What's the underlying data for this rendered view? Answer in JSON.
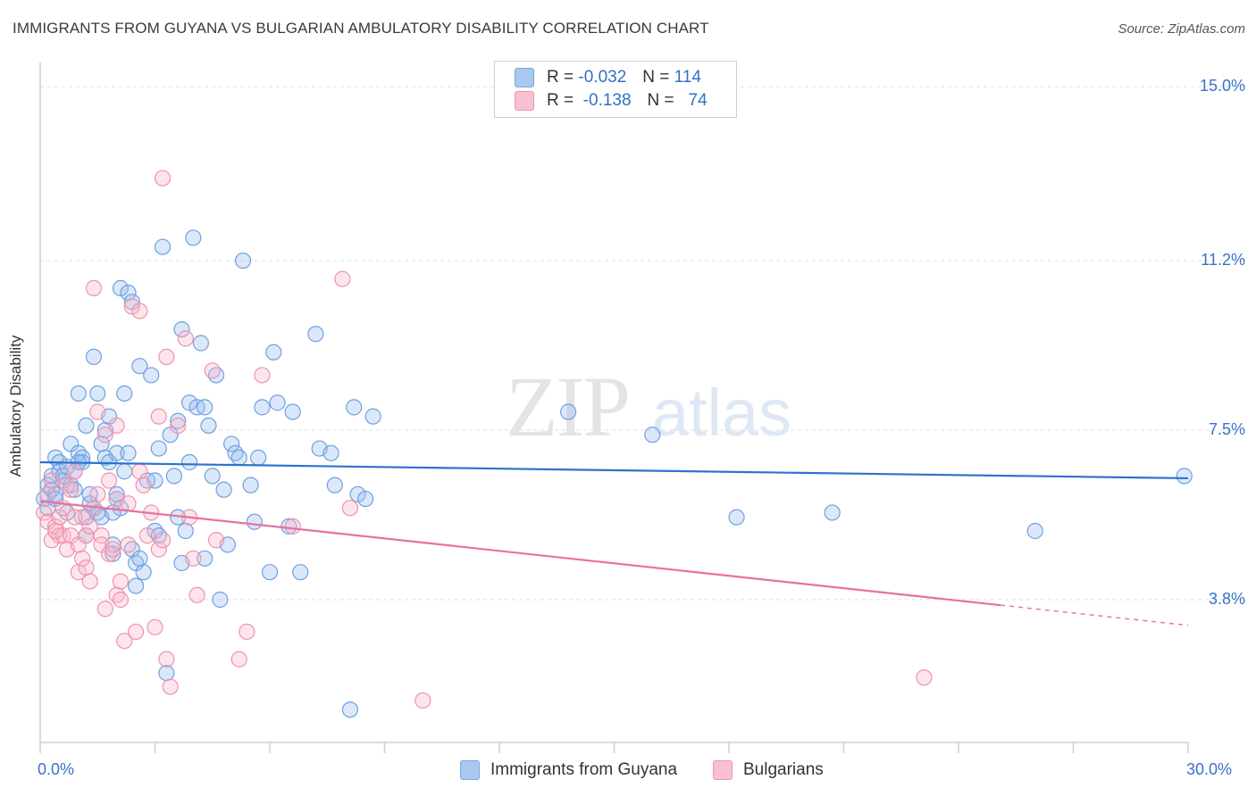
{
  "title": "IMMIGRANTS FROM GUYANA VS BULGARIAN AMBULATORY DISABILITY CORRELATION CHART",
  "source": "Source: ZipAtlas.com",
  "watermark": {
    "zip": "ZIP",
    "atlas": "atlas"
  },
  "legend": {
    "rows": [
      {
        "r_label": "R =",
        "r_value": "-0.032",
        "n_label": "N =",
        "n_value": "114",
        "color": "#a8c8f0",
        "border": "#7aa6de"
      },
      {
        "r_label": "R =",
        "r_value": "-0.138",
        "n_label": "N =",
        "n_value": "74",
        "color": "#f8c0d0",
        "border": "#ee95ae"
      }
    ]
  },
  "bottom_legend": [
    {
      "label": "Immigrants from Guyana",
      "color": "#a8c8f0",
      "border": "#7aa6de"
    },
    {
      "label": "Bulgarians",
      "color": "#f8c0d0",
      "border": "#ee95ae"
    }
  ],
  "chart_data": {
    "type": "scatter",
    "ylabel": "Ambulatory Disability",
    "xlim": [
      0,
      30
    ],
    "ylim": [
      0,
      15.5
    ],
    "x_ticks": [
      {
        "value": 0,
        "label": "0.0%"
      },
      {
        "value": 30,
        "label": "30.0%"
      }
    ],
    "y_ticks": [
      {
        "value": 3.8,
        "label": "3.8%"
      },
      {
        "value": 7.5,
        "label": "7.5%"
      },
      {
        "value": 11.2,
        "label": "11.2%"
      },
      {
        "value": 15.0,
        "label": "15.0%"
      }
    ],
    "grid": true,
    "series": [
      {
        "name": "Immigrants from Guyana",
        "color": "#6fa0e0",
        "fill": "rgba(150,190,240,0.35)",
        "trend": {
          "x0": 0,
          "y0": 6.8,
          "x1": 30,
          "y1": 6.45,
          "color": "#2f72cc"
        },
        "points": [
          [
            0.1,
            6.0
          ],
          [
            0.2,
            6.3
          ],
          [
            0.2,
            5.8
          ],
          [
            0.3,
            6.2
          ],
          [
            0.3,
            6.5
          ],
          [
            0.4,
            6.9
          ],
          [
            0.4,
            6.1
          ],
          [
            0.5,
            6.8
          ],
          [
            0.5,
            6.6
          ],
          [
            0.6,
            6.4
          ],
          [
            0.6,
            6.5
          ],
          [
            0.7,
            6.7
          ],
          [
            0.7,
            5.7
          ],
          [
            0.8,
            6.3
          ],
          [
            0.8,
            7.2
          ],
          [
            0.9,
            6.6
          ],
          [
            1.0,
            7.0
          ],
          [
            1.0,
            8.3
          ],
          [
            1.1,
            6.9
          ],
          [
            1.1,
            6.8
          ],
          [
            1.2,
            5.6
          ],
          [
            1.2,
            7.6
          ],
          [
            1.3,
            5.9
          ],
          [
            1.3,
            6.1
          ],
          [
            1.4,
            9.1
          ],
          [
            1.4,
            5.8
          ],
          [
            1.5,
            8.3
          ],
          [
            1.5,
            5.7
          ],
          [
            1.6,
            5.6
          ],
          [
            1.6,
            7.2
          ],
          [
            1.7,
            7.5
          ],
          [
            1.7,
            6.9
          ],
          [
            1.8,
            7.8
          ],
          [
            1.8,
            6.8
          ],
          [
            1.9,
            5.0
          ],
          [
            1.9,
            4.8
          ],
          [
            2.0,
            6.0
          ],
          [
            2.0,
            7.0
          ],
          [
            2.0,
            6.1
          ],
          [
            2.1,
            10.6
          ],
          [
            2.1,
            5.8
          ],
          [
            2.2,
            6.6
          ],
          [
            2.2,
            8.3
          ],
          [
            2.3,
            7.0
          ],
          [
            2.3,
            10.5
          ],
          [
            2.4,
            10.3
          ],
          [
            2.4,
            4.9
          ],
          [
            2.5,
            4.6
          ],
          [
            2.5,
            4.1
          ],
          [
            2.6,
            8.9
          ],
          [
            2.7,
            4.4
          ],
          [
            2.8,
            6.4
          ],
          [
            2.9,
            8.7
          ],
          [
            3.0,
            6.4
          ],
          [
            3.0,
            5.3
          ],
          [
            3.1,
            7.1
          ],
          [
            3.2,
            11.5
          ],
          [
            3.3,
            2.2
          ],
          [
            3.4,
            7.4
          ],
          [
            3.5,
            6.5
          ],
          [
            3.6,
            7.7
          ],
          [
            3.6,
            5.6
          ],
          [
            3.7,
            9.7
          ],
          [
            3.8,
            5.3
          ],
          [
            3.9,
            6.8
          ],
          [
            3.9,
            8.1
          ],
          [
            4.0,
            11.7
          ],
          [
            4.1,
            8.0
          ],
          [
            4.2,
            9.4
          ],
          [
            4.3,
            8.0
          ],
          [
            4.3,
            4.7
          ],
          [
            4.4,
            7.6
          ],
          [
            4.5,
            6.5
          ],
          [
            4.6,
            8.7
          ],
          [
            4.7,
            3.8
          ],
          [
            4.8,
            6.2
          ],
          [
            4.9,
            5.0
          ],
          [
            5.0,
            7.2
          ],
          [
            5.1,
            7.0
          ],
          [
            5.2,
            6.9
          ],
          [
            5.3,
            11.2
          ],
          [
            5.5,
            6.3
          ],
          [
            5.6,
            5.5
          ],
          [
            5.7,
            6.9
          ],
          [
            5.8,
            8.0
          ],
          [
            6.0,
            4.4
          ],
          [
            6.1,
            9.2
          ],
          [
            6.2,
            8.1
          ],
          [
            6.5,
            5.4
          ],
          [
            6.6,
            7.9
          ],
          [
            6.8,
            4.4
          ],
          [
            7.2,
            9.6
          ],
          [
            7.3,
            7.1
          ],
          [
            7.6,
            7.0
          ],
          [
            7.7,
            6.3
          ],
          [
            8.1,
            1.4
          ],
          [
            8.2,
            8.0
          ],
          [
            8.3,
            6.1
          ],
          [
            8.5,
            6.0
          ],
          [
            8.7,
            7.8
          ],
          [
            13.8,
            7.9
          ],
          [
            16.0,
            7.4
          ],
          [
            18.2,
            5.6
          ],
          [
            20.7,
            5.7
          ],
          [
            26.0,
            5.3
          ],
          [
            29.9,
            6.5
          ],
          [
            1.0,
            6.8
          ],
          [
            1.2,
            5.2
          ],
          [
            1.9,
            5.7
          ],
          [
            2.6,
            4.7
          ],
          [
            3.1,
            5.2
          ],
          [
            3.7,
            4.6
          ],
          [
            0.4,
            6.0
          ],
          [
            0.9,
            6.2
          ]
        ]
      },
      {
        "name": "Bulgarians",
        "color": "#ee92ad",
        "fill": "rgba(248,180,200,0.35)",
        "trend": {
          "x0": 0,
          "y0": 5.95,
          "x1": 25.1,
          "y1": 3.68,
          "color": "#e8719a"
        },
        "trend_dash": {
          "x0": 25.1,
          "y0": 3.68,
          "x1": 30,
          "y1": 3.24
        },
        "points": [
          [
            0.1,
            5.7
          ],
          [
            0.2,
            5.5
          ],
          [
            0.2,
            6.1
          ],
          [
            0.3,
            5.1
          ],
          [
            0.3,
            6.4
          ],
          [
            0.4,
            5.4
          ],
          [
            0.5,
            5.6
          ],
          [
            0.5,
            5.2
          ],
          [
            0.6,
            5.2
          ],
          [
            0.7,
            6.3
          ],
          [
            0.7,
            4.9
          ],
          [
            0.8,
            5.2
          ],
          [
            0.8,
            6.2
          ],
          [
            0.9,
            6.6
          ],
          [
            1.0,
            4.4
          ],
          [
            1.0,
            5.0
          ],
          [
            1.1,
            4.7
          ],
          [
            1.2,
            4.5
          ],
          [
            1.2,
            5.2
          ],
          [
            1.3,
            4.2
          ],
          [
            1.4,
            5.8
          ],
          [
            1.4,
            10.6
          ],
          [
            1.5,
            7.9
          ],
          [
            1.6,
            5.2
          ],
          [
            1.6,
            5.0
          ],
          [
            1.7,
            3.6
          ],
          [
            1.7,
            7.4
          ],
          [
            1.8,
            6.4
          ],
          [
            1.8,
            4.8
          ],
          [
            1.9,
            4.9
          ],
          [
            2.0,
            6.0
          ],
          [
            2.0,
            3.9
          ],
          [
            2.0,
            7.6
          ],
          [
            2.1,
            3.8
          ],
          [
            2.2,
            2.9
          ],
          [
            2.3,
            5.9
          ],
          [
            2.3,
            5.0
          ],
          [
            2.4,
            10.2
          ],
          [
            2.5,
            3.1
          ],
          [
            2.6,
            6.6
          ],
          [
            2.6,
            10.1
          ],
          [
            2.7,
            6.3
          ],
          [
            2.9,
            5.7
          ],
          [
            3.0,
            3.2
          ],
          [
            3.1,
            4.9
          ],
          [
            3.1,
            7.8
          ],
          [
            3.2,
            5.1
          ],
          [
            3.2,
            13.0
          ],
          [
            3.3,
            2.5
          ],
          [
            3.4,
            1.9
          ],
          [
            3.3,
            9.1
          ],
          [
            3.6,
            7.6
          ],
          [
            3.8,
            9.5
          ],
          [
            3.9,
            5.6
          ],
          [
            4.0,
            4.7
          ],
          [
            4.1,
            3.9
          ],
          [
            4.5,
            8.8
          ],
          [
            4.6,
            5.1
          ],
          [
            5.2,
            2.5
          ],
          [
            5.4,
            3.1
          ],
          [
            5.8,
            8.7
          ],
          [
            6.6,
            5.4
          ],
          [
            7.9,
            10.8
          ],
          [
            8.1,
            5.8
          ],
          [
            10.0,
            1.6
          ],
          [
            23.1,
            2.1
          ],
          [
            0.4,
            5.3
          ],
          [
            0.6,
            5.8
          ],
          [
            1.1,
            5.6
          ],
          [
            1.5,
            6.1
          ],
          [
            2.1,
            4.2
          ],
          [
            2.8,
            5.2
          ],
          [
            0.9,
            5.6
          ],
          [
            1.3,
            5.4
          ]
        ]
      }
    ]
  }
}
